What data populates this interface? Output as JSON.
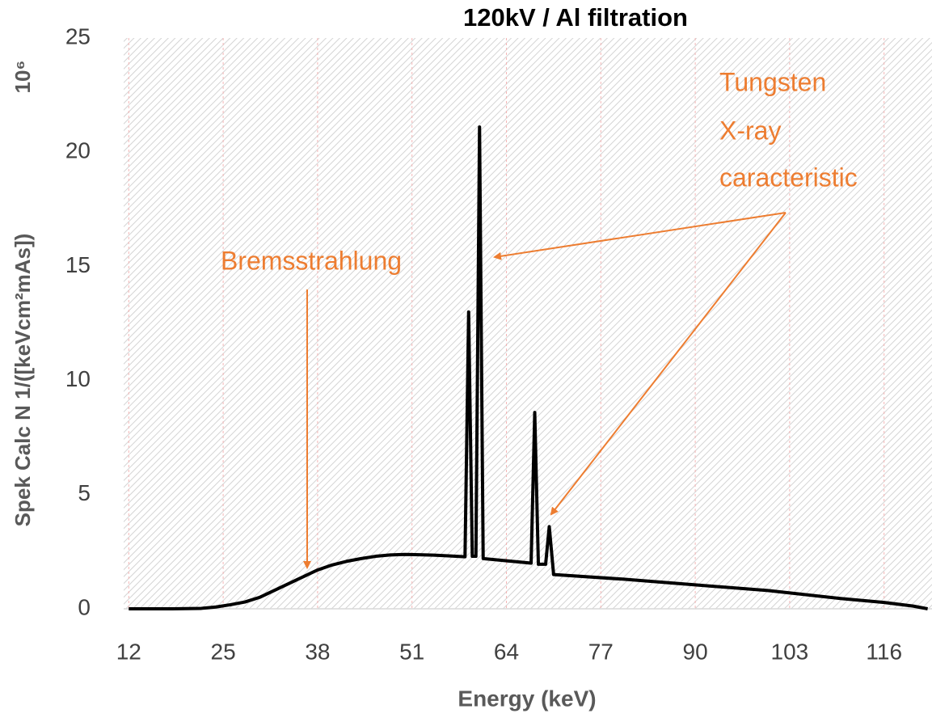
{
  "chart_data": {
    "type": "line",
    "title": "120kV / Al filtration",
    "x_label": "Energy (keV)",
    "y_label": "Spek Calc N 1/([keVcm²mAs])",
    "y_unit_label": "10⁶",
    "x": [
      12,
      18,
      22,
      24,
      26,
      28,
      30,
      32,
      34,
      36,
      38,
      40,
      42,
      44,
      46,
      48,
      50,
      52,
      54,
      56,
      58.3,
      58.8,
      59.3,
      59.8,
      60.3,
      60.8,
      67.4,
      67.9,
      68.4,
      69.4,
      69.9,
      70.5,
      80,
      90,
      100,
      110,
      116,
      120,
      122
    ],
    "series": [
      {
        "name": "Spek Calc N",
        "color": "#000000",
        "values": [
          0,
          0,
          0.02,
          0.08,
          0.18,
          0.3,
          0.5,
          0.8,
          1.1,
          1.4,
          1.7,
          1.92,
          2.08,
          2.2,
          2.3,
          2.36,
          2.38,
          2.37,
          2.35,
          2.32,
          2.28,
          13.0,
          2.3,
          2.3,
          21.1,
          2.2,
          2.0,
          8.6,
          1.95,
          1.95,
          3.6,
          1.5,
          1.3,
          1.05,
          0.8,
          0.45,
          0.28,
          0.12,
          0
        ]
      }
    ],
    "xlim": [
      11.3,
      122.6
    ],
    "ylim": [
      0,
      25
    ],
    "xticks": [
      12,
      25,
      38,
      51,
      64,
      77,
      90,
      103,
      116
    ],
    "yticks": [
      0,
      5,
      10,
      15,
      20,
      25
    ],
    "grid": true,
    "annotations": [
      {
        "text": "Bremsstrahlung"
      },
      {
        "text": "Tungsten"
      },
      {
        "text": "X-ray"
      },
      {
        "text": "caracteristic"
      }
    ]
  }
}
